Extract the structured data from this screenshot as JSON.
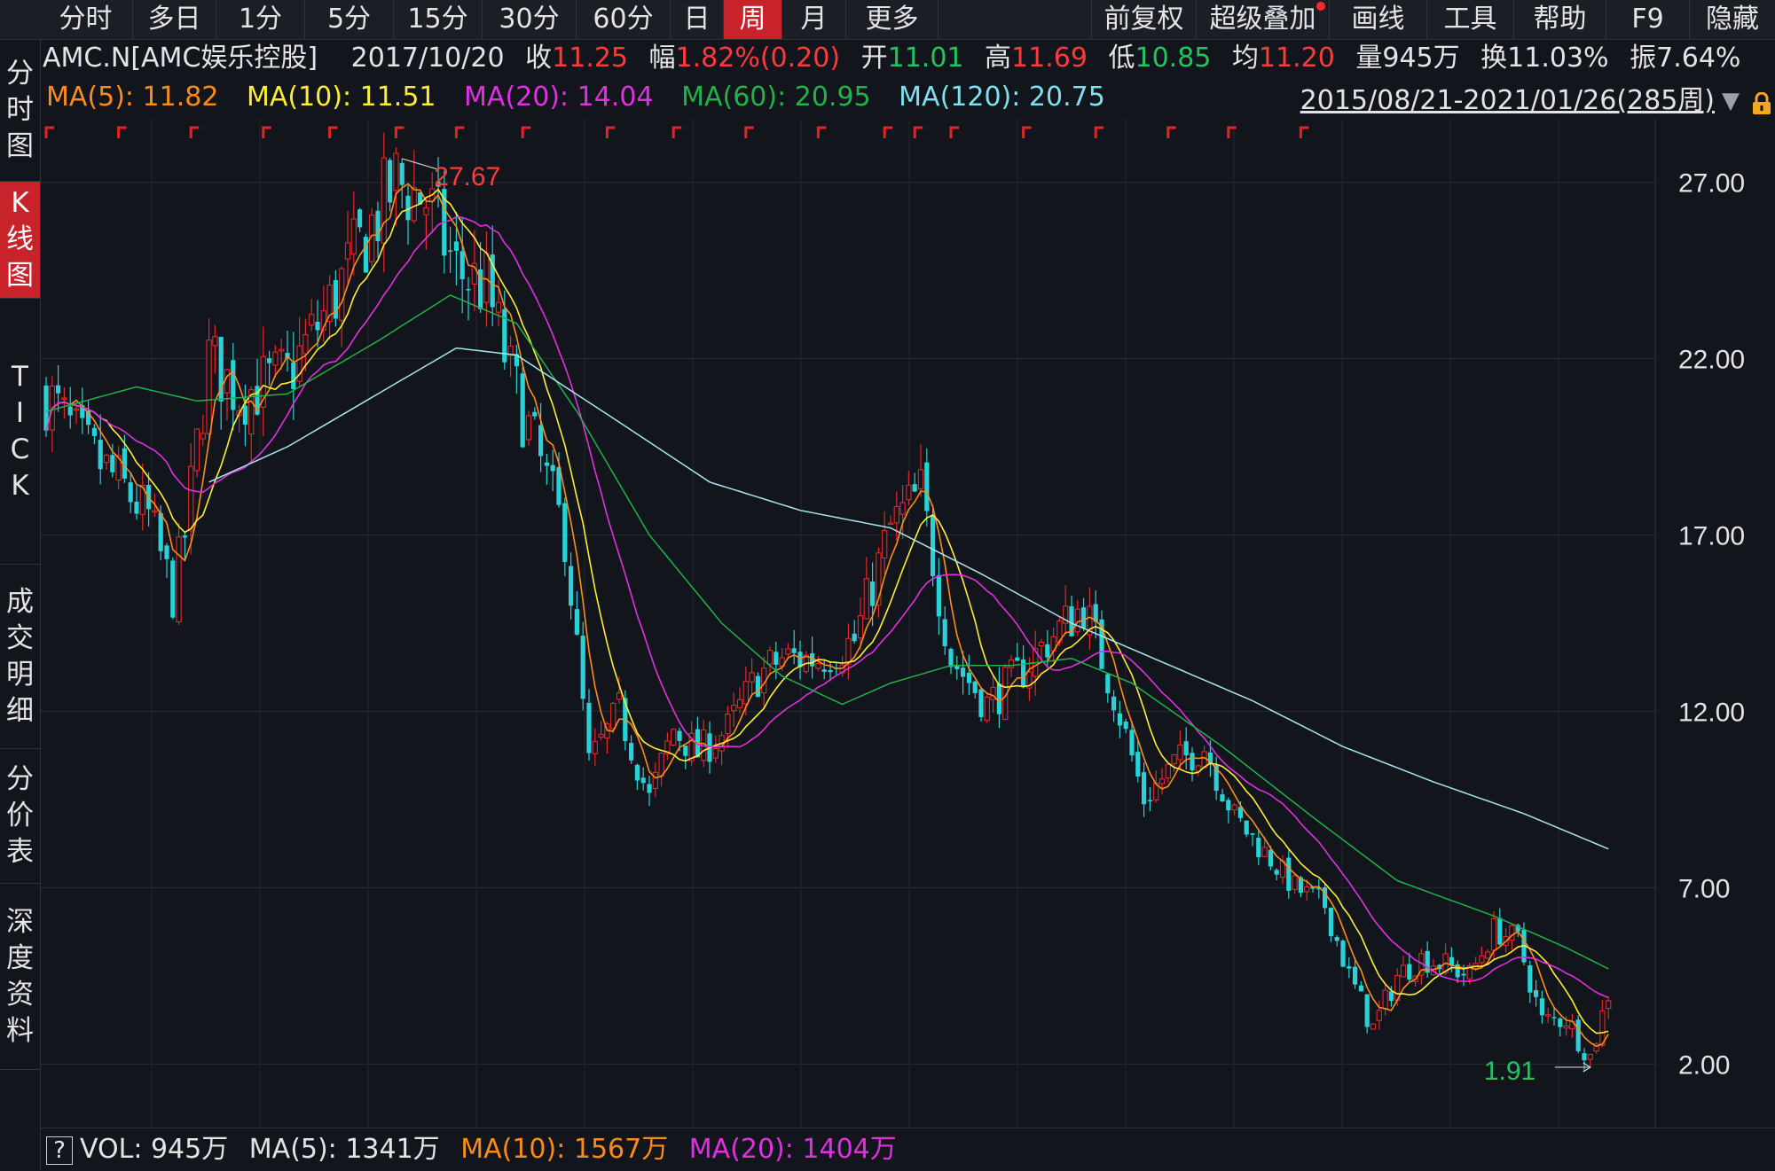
{
  "toolbar": {
    "tabs": [
      "分时",
      "多日",
      "1分",
      "5分",
      "15分",
      "30分",
      "60分",
      "日",
      "周",
      "月",
      "更多"
    ],
    "active_tab": "周",
    "right": [
      "前复权",
      "超级叠加",
      "画线",
      "工具",
      "帮助",
      "F9",
      "隐藏"
    ]
  },
  "sidebar": [
    {
      "label": "分时图",
      "active": false
    },
    {
      "label": "K线图",
      "active": true
    },
    {
      "label": "TICK",
      "active": false
    },
    {
      "label": "成交明细",
      "active": false
    },
    {
      "label": "分价表",
      "active": false
    },
    {
      "label": "深度资料",
      "active": false
    }
  ],
  "info": {
    "name": "AMC.N[AMC娱乐控股]",
    "date": "2017/10/20",
    "close_label": "收",
    "close": "11.25",
    "change_label": "幅",
    "change": "1.82%(0.20)",
    "open_label": "开",
    "open": "11.01",
    "high_label": "高",
    "high": "11.69",
    "low_label": "低",
    "low": "10.85",
    "avg_label": "均",
    "avg": "11.20",
    "vol_label": "量",
    "vol": "945万",
    "turnover_label": "换",
    "turnover": "11.03%",
    "amplitude_label": "振",
    "amplitude": "7.64%"
  },
  "ma_legend": [
    {
      "label": "MA(5): 11.82",
      "color": "#ff8c1a"
    },
    {
      "label": "MA(10): 11.51",
      "color": "#ffee33"
    },
    {
      "label": "MA(20): 14.04",
      "color": "#e030e0"
    },
    {
      "label": "MA(60): 20.95",
      "color": "#21b24a"
    },
    {
      "label": "MA(120): 20.75",
      "color": "#7fe0f0"
    }
  ],
  "range": "2015/08/21-2021/01/26(285周)",
  "chart_data": {
    "type": "candlestick",
    "y_ticks": [
      "27.00",
      "22.00",
      "17.00",
      "12.00",
      "7.00",
      "2.00"
    ],
    "ylim": [
      0.2,
      28.8
    ],
    "high_marker": "27.67",
    "low_marker": "1.91",
    "colors": {
      "up": "#e02929",
      "down": "#29d2d6",
      "ma5": "#ff8c1a",
      "ma10": "#ffee33",
      "ma20": "#e030e0",
      "ma60": "#21b24a",
      "ma120": "#a8e6ee"
    },
    "anchors": [
      [
        0,
        21.0
      ],
      [
        6,
        19.5
      ],
      [
        12,
        18.5
      ],
      [
        17,
        17.5
      ],
      [
        21,
        15.3
      ],
      [
        23,
        17.0
      ],
      [
        27,
        22.0
      ],
      [
        32,
        21.0
      ],
      [
        40,
        21.5
      ],
      [
        47,
        23.5
      ],
      [
        53,
        25.5
      ],
      [
        58,
        27.0
      ],
      [
        63,
        26.5
      ],
      [
        68,
        24.5
      ],
      [
        73,
        24.0
      ],
      [
        77,
        21.5
      ],
      [
        82,
        19.0
      ],
      [
        86,
        17.0
      ],
      [
        90,
        10.5
      ],
      [
        95,
        12.0
      ],
      [
        100,
        9.5
      ],
      [
        104,
        11.5
      ],
      [
        108,
        10.8
      ],
      [
        113,
        11.5
      ],
      [
        118,
        13.0
      ],
      [
        122,
        13.5
      ],
      [
        128,
        13.5
      ],
      [
        134,
        14.0
      ],
      [
        140,
        17.2
      ],
      [
        145,
        18.2
      ],
      [
        150,
        13.5
      ],
      [
        156,
        12.2
      ],
      [
        161,
        13.0
      ],
      [
        166,
        14.0
      ],
      [
        172,
        15.0
      ],
      [
        177,
        12.5
      ],
      [
        182,
        9.5
      ],
      [
        187,
        10.5
      ],
      [
        192,
        11.0
      ],
      [
        197,
        9.0
      ],
      [
        202,
        8.0
      ],
      [
        207,
        7.0
      ],
      [
        212,
        6.5
      ],
      [
        216,
        4.5
      ],
      [
        220,
        3.0
      ],
      [
        224,
        4.5
      ],
      [
        228,
        5.0
      ],
      [
        232,
        4.8
      ],
      [
        236,
        4.5
      ],
      [
        240,
        5.8
      ],
      [
        244,
        5.5
      ],
      [
        248,
        3.2
      ],
      [
        252,
        3.3
      ],
      [
        256,
        2.2
      ],
      [
        259,
        4.0
      ]
    ],
    "ma60_curve": [
      [
        0,
        20.5
      ],
      [
        15,
        21.2
      ],
      [
        25,
        20.8
      ],
      [
        40,
        21.0
      ],
      [
        55,
        22.5
      ],
      [
        67,
        23.8
      ],
      [
        78,
        23.0
      ],
      [
        88,
        20.5
      ],
      [
        100,
        17.0
      ],
      [
        112,
        14.5
      ],
      [
        122,
        13.0
      ],
      [
        132,
        12.2
      ],
      [
        140,
        12.8
      ],
      [
        150,
        13.3
      ],
      [
        160,
        13.3
      ],
      [
        170,
        13.5
      ],
      [
        180,
        12.8
      ],
      [
        195,
        11.0
      ],
      [
        210,
        9.0
      ],
      [
        224,
        7.2
      ],
      [
        240,
        6.2
      ],
      [
        252,
        5.3
      ],
      [
        259,
        4.7
      ]
    ],
    "ma120_curve": [
      [
        27,
        18.5
      ],
      [
        40,
        19.5
      ],
      [
        55,
        21.0
      ],
      [
        68,
        22.3
      ],
      [
        78,
        22.1
      ],
      [
        95,
        20.2
      ],
      [
        110,
        18.5
      ],
      [
        125,
        17.7
      ],
      [
        140,
        17.2
      ],
      [
        155,
        15.9
      ],
      [
        170,
        14.5
      ],
      [
        185,
        13.4
      ],
      [
        200,
        12.3
      ],
      [
        215,
        11.0
      ],
      [
        230,
        10.0
      ],
      [
        245,
        9.1
      ],
      [
        259,
        8.1
      ]
    ],
    "red_flags": [
      0,
      12,
      24,
      36,
      47,
      58,
      68,
      79,
      93,
      104,
      116,
      128,
      139,
      144,
      150,
      162,
      174,
      186,
      196,
      208
    ]
  },
  "volume": {
    "text": "VOL: 945万",
    "ma5": {
      "label": "MA(5): 1341万",
      "color": "#e4e4e4"
    },
    "ma10": {
      "label": "MA(10): 1567万",
      "color": "#ff8c1a"
    },
    "ma20": {
      "label": "MA(20): 1404万",
      "color": "#e030e0"
    }
  }
}
